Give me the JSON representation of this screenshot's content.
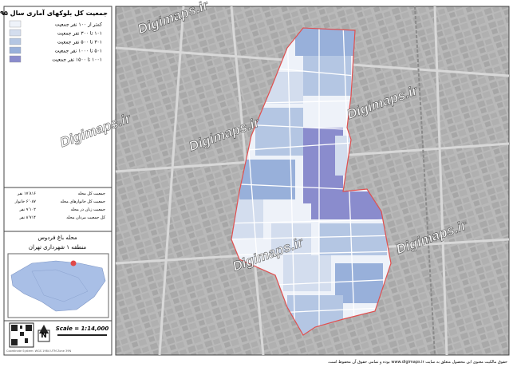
{
  "title": "جمعیت کل بلوکهای آماری سال ۱۳۹۵",
  "legend": [
    {
      "label": "کمتر از ۱۰۰ نفر جمعیت",
      "color": "#eef2f9"
    },
    {
      "label": "۱۰۱ تا ۳۰۰ نفر جمعیت",
      "color": "#d3ddee"
    },
    {
      "label": "۳۰۱ تا ۵۰۰ نفر جمعیت",
      "color": "#b4c6e3"
    },
    {
      "label": "۵۰۱ تا ۱۰۰۰ نفر جمعیت",
      "color": "#98b0da"
    },
    {
      "label": "۱۰۰۱ تا ۱۵۰۰ نفر جمعیت",
      "color": "#8a8ccd"
    }
  ],
  "stats": [
    {
      "label": "جمعیت کل محله",
      "value": "۱۷٬۸۱۶ نفر"
    },
    {
      "label": "جمعیت کل خانوارهای محله",
      "value": "۶٬۰۸۷ خانوار"
    },
    {
      "label": "جمعیت زنان در محله",
      "value": "۹٬۱۰۲ نفر"
    },
    {
      "label": "کل جمعیت مردان محله",
      "value": "۸٬۷۱۴ نفر"
    }
  ],
  "neighborhood": "محله باغ فردوس",
  "district": "منطقه ۱ شهرداری تهران",
  "north": "N",
  "scale": "Scale = 1:14,000",
  "coordinate_note": "Coordinate System: WGS 1984 UTM Zone 39N",
  "watermark": "Digimaps.ir",
  "footer": "حقوق مالکیت معنوی این محصول متعلق به سایت www.digimaps.ir بوده و تمامی حقوق آن محفوظ است."
}
